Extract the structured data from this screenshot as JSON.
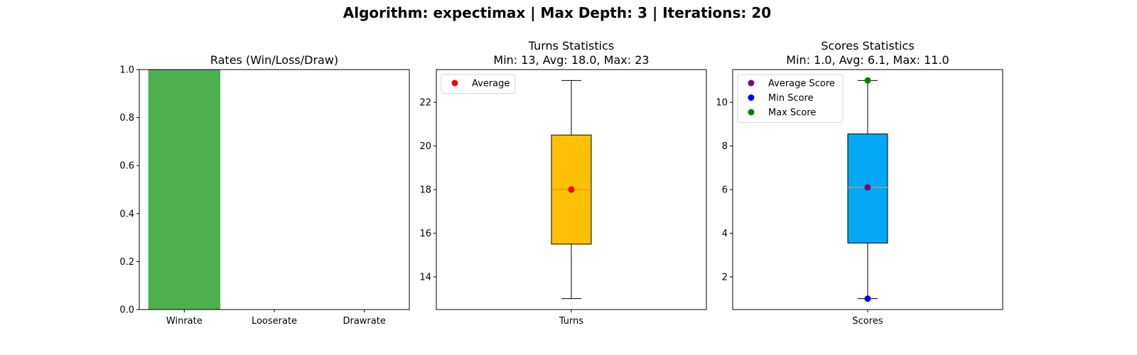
{
  "figure": {
    "suptitle": "Algorithm: expectimax | Max Depth: 3 | Iterations: 20"
  },
  "chart_data": [
    {
      "type": "bar",
      "title": "Rates (Win/Loss/Draw)",
      "categories": [
        "Winrate",
        "Looserate",
        "Drawrate"
      ],
      "values": [
        1.0,
        0.0,
        0.0
      ],
      "ylim": [
        0,
        1
      ],
      "yticks": [
        "0.0",
        "0.2",
        "0.4",
        "0.6",
        "0.8",
        "1.0"
      ],
      "colors": [
        "#4caf50",
        "#f44336",
        "#9e9e9e"
      ]
    },
    {
      "type": "box",
      "title_lines": [
        "Turns Statistics",
        "Min: 13, Avg: 18.0, Max: 23"
      ],
      "category": "Turns",
      "box": {
        "min": 13,
        "q1": 15.5,
        "median": 18,
        "q3": 20.5,
        "max": 23
      },
      "ylim": [
        12.5,
        23.5
      ],
      "yticks": [
        "14",
        "16",
        "18",
        "20",
        "22"
      ],
      "box_color": "#ffc107",
      "points": [
        {
          "name": "Average",
          "value": 18.0,
          "color": "#ff0000"
        }
      ],
      "legend": [
        "Average"
      ]
    },
    {
      "type": "box",
      "title_lines": [
        "Scores Statistics",
        "Min: 1.0, Avg: 6.1, Max: 11.0"
      ],
      "category": "Scores",
      "box": {
        "min": 1.0,
        "q1": 3.55,
        "median": 6.1,
        "q3": 8.55,
        "max": 11.0
      },
      "ylim": [
        0.5,
        11.5
      ],
      "yticks": [
        "2",
        "4",
        "6",
        "8",
        "10"
      ],
      "box_color": "#03a9f4",
      "points": [
        {
          "name": "Average Score",
          "value": 6.1,
          "color": "#800080"
        },
        {
          "name": "Min Score",
          "value": 1.0,
          "color": "#0000ff"
        },
        {
          "name": "Max Score",
          "value": 11.0,
          "color": "#008000"
        }
      ],
      "legend": [
        "Average Score",
        "Min Score",
        "Max Score"
      ]
    }
  ]
}
